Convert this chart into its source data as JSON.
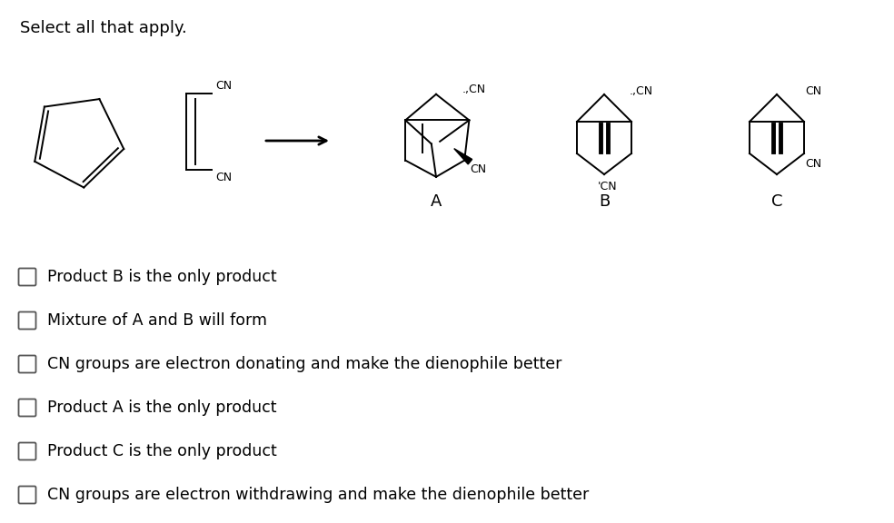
{
  "title": "Select all that apply.",
  "background_color": "#ffffff",
  "checkbox_options": [
    "Product B is the only product",
    "Mixture of A and B will form",
    "CN groups are electron donating and make the dienophile better",
    "Product A is the only product",
    "Product C is the only product",
    "CN groups are electron withdrawing and make the dienophile better"
  ],
  "title_fontsize": 13,
  "option_fontsize": 12.5,
  "label_fontsize": 13
}
